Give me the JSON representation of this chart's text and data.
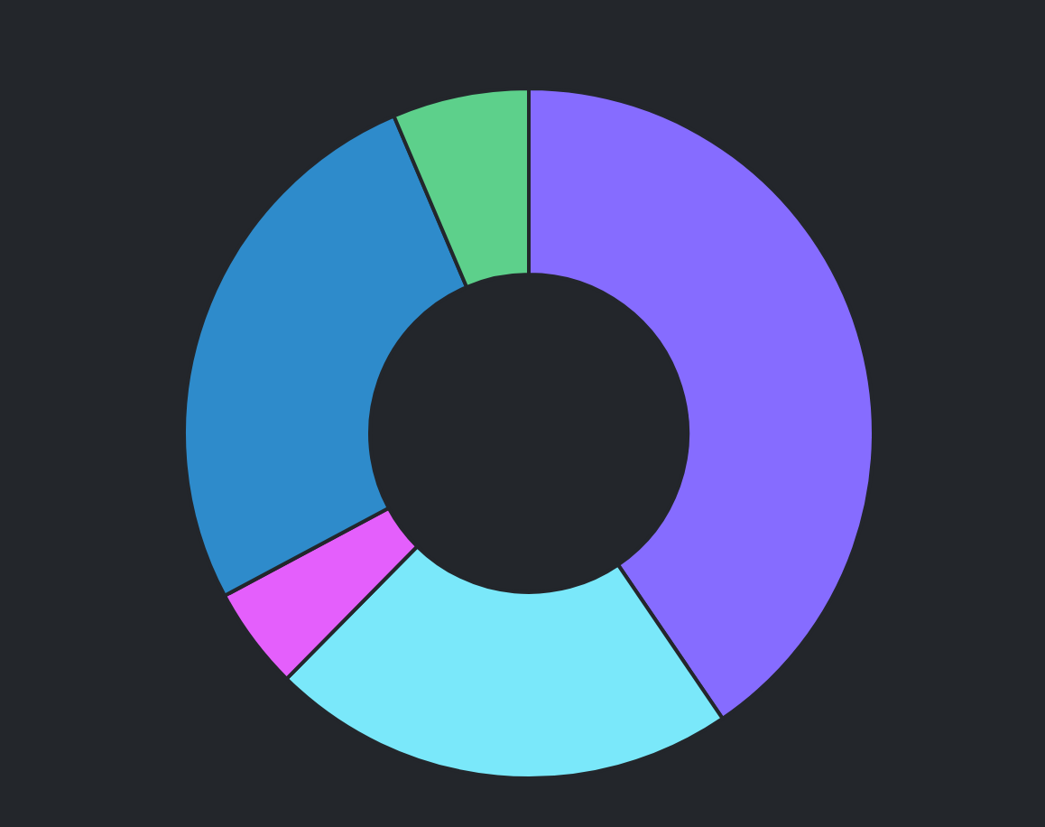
{
  "chart_data": {
    "type": "donut",
    "categories": [
      null,
      null,
      null,
      null,
      null
    ],
    "values": [
      40.5,
      21.9,
      4.8,
      26.4,
      6.4
    ],
    "colors": [
      "#866cff",
      "#7ae8fa",
      "#e45ffc",
      "#2e8bcb",
      "#5dd08b"
    ]
  }
}
